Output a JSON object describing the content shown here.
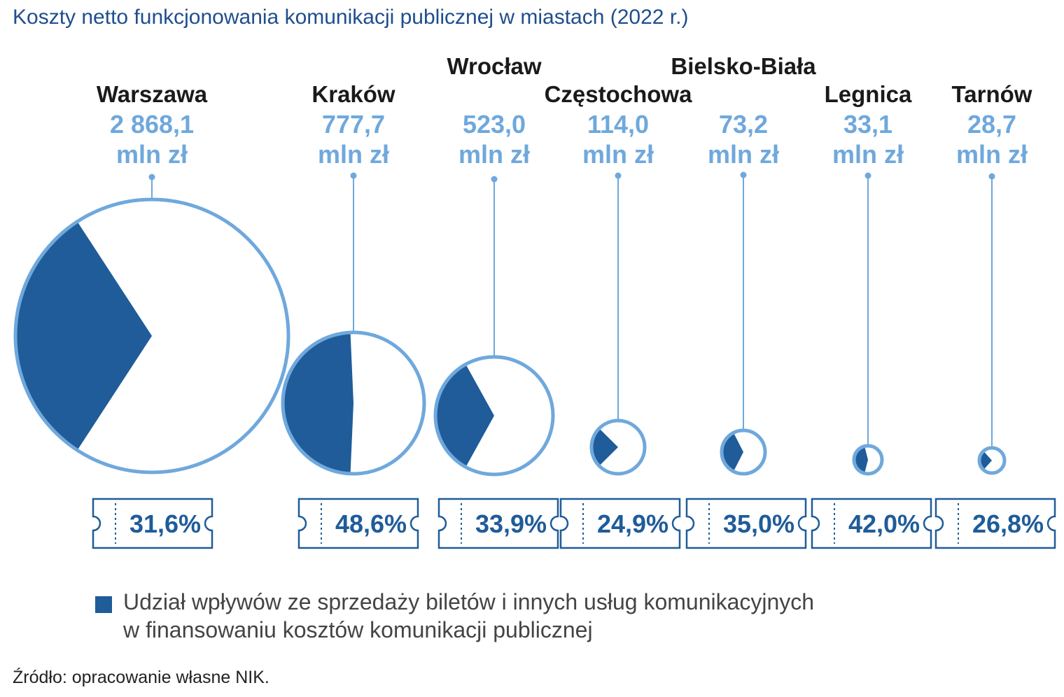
{
  "title": "Koszty netto funkcjonowania komunikacji publicznej w miastach (2022 r.)",
  "unit": "mln zł",
  "colors": {
    "share": "#1f5c99",
    "outline": "#6fa8dc",
    "text_value": "#6fa8dc",
    "text_pct": "#1f5c99"
  },
  "chart_data": {
    "type": "pie",
    "title": "Koszty netto funkcjonowania komunikacji publicznej w miastach (2022 r.)",
    "categories": [
      "Warszawa",
      "Kraków",
      "Wrocław",
      "Częstochowa",
      "Bielsko-Biała",
      "Legnica",
      "Tarnów"
    ],
    "costs": [
      2868.1,
      777.7,
      523.0,
      114.0,
      73.2,
      33.1,
      28.7
    ],
    "cost_labels": [
      "2 868,1",
      "777,7",
      "523,0",
      "114,0",
      "73,2",
      "33,1",
      "28,7"
    ],
    "share_values": [
      31.6,
      48.6,
      33.9,
      24.9,
      35.0,
      42.0,
      26.8
    ],
    "share_labels": [
      "31,6%",
      "48,6%",
      "33,9%",
      "24,9%",
      "35,0%",
      "42,0%",
      "26,8%"
    ],
    "legend": "Udział wpływów ze sprzedaży biletów i innych usług komunikacyjnych w finansowaniu kosztów komunikacji publicznej"
  },
  "legend": {
    "line1": "Udział wpływów ze sprzedaży biletów i innych usług komunikacyjnych",
    "line2": "w finansowaniu kosztów komunikacji publicznej"
  },
  "source": "Źródło: opracowanie własne NIK."
}
